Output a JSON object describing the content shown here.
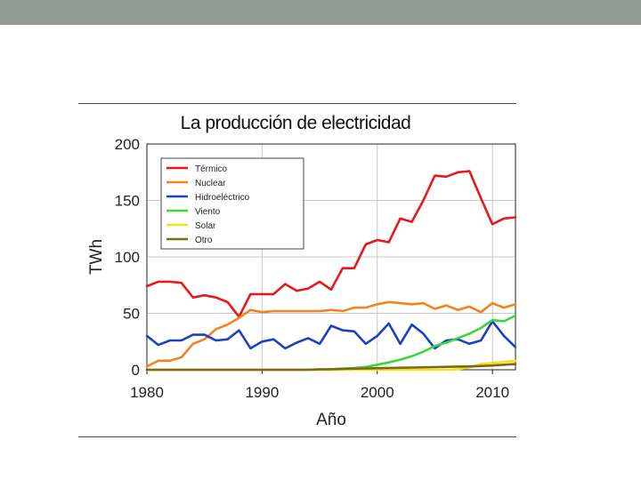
{
  "slide": {
    "header_color": "#909c94"
  },
  "chart_data": {
    "type": "line",
    "title": "La producción de electricidad",
    "xlabel": "Año",
    "ylabel": "TWh",
    "xlim": [
      1980,
      2012
    ],
    "ylim": [
      0,
      200
    ],
    "xticks": [
      1980,
      1990,
      2000,
      2010
    ],
    "yticks": [
      0,
      50,
      100,
      150,
      200
    ],
    "grid": true,
    "legend_position": "top-left",
    "x": [
      1980,
      1981,
      1982,
      1983,
      1984,
      1985,
      1986,
      1987,
      1988,
      1989,
      1990,
      1991,
      1992,
      1993,
      1994,
      1995,
      1996,
      1997,
      1998,
      1999,
      2000,
      2001,
      2002,
      2003,
      2004,
      2005,
      2006,
      2007,
      2008,
      2009,
      2010,
      2011,
      2012
    ],
    "series": [
      {
        "name": "Térmico",
        "color": "#e41a1c",
        "values": [
          74,
          78,
          78,
          77,
          64,
          66,
          64,
          60,
          47,
          67,
          67,
          67,
          76,
          70,
          72,
          78,
          71,
          90,
          90,
          111,
          115,
          113,
          134,
          131,
          150,
          172,
          171,
          175,
          176,
          152,
          129,
          134,
          135
        ]
      },
      {
        "name": "Nuclear",
        "color": "#f58220",
        "values": [
          3,
          8,
          8,
          11,
          23,
          27,
          36,
          40,
          46,
          53,
          51,
          52,
          52,
          52,
          52,
          52,
          53,
          52,
          55,
          55,
          58,
          60,
          59,
          58,
          59,
          54,
          57,
          53,
          56,
          51,
          59,
          55,
          58
        ]
      },
      {
        "name": "Hidroeléctrico",
        "color": "#1f3fbf",
        "values": [
          30,
          22,
          26,
          26,
          31,
          31,
          26,
          27,
          35,
          19,
          25,
          27,
          19,
          24,
          28,
          23,
          39,
          35,
          34,
          23,
          30,
          41,
          23,
          40,
          32,
          19,
          26,
          27,
          23,
          26,
          43,
          30,
          20
        ]
      },
      {
        "name": "Viento",
        "color": "#3cd63c",
        "values": [
          0,
          0,
          0,
          0,
          0,
          0,
          0,
          0,
          0,
          0,
          0,
          0,
          0,
          0,
          0,
          0.3,
          0.5,
          1,
          1.5,
          2.5,
          4.5,
          6.5,
          9,
          12,
          16,
          21,
          24,
          28,
          32,
          37,
          44,
          43,
          48
        ]
      },
      {
        "name": "Solar",
        "color": "#f0e020",
        "values": [
          0,
          0,
          0,
          0,
          0,
          0,
          0,
          0,
          0,
          0,
          0,
          0,
          0,
          0,
          0,
          0,
          0,
          0,
          0,
          0,
          0,
          0,
          0,
          0,
          0,
          0,
          0,
          0.5,
          2,
          5,
          6,
          7,
          8
        ]
      },
      {
        "name": "Otro",
        "color": "#7a6a10",
        "values": [
          0,
          0,
          0,
          0,
          0,
          0,
          0,
          0,
          0,
          0,
          0,
          0,
          0,
          0,
          0,
          0.3,
          0.5,
          0.8,
          1,
          1.2,
          1.4,
          1.6,
          1.8,
          2,
          2.2,
          2.4,
          2.6,
          2.8,
          3,
          3.3,
          3.8,
          4.5,
          5
        ]
      }
    ]
  }
}
